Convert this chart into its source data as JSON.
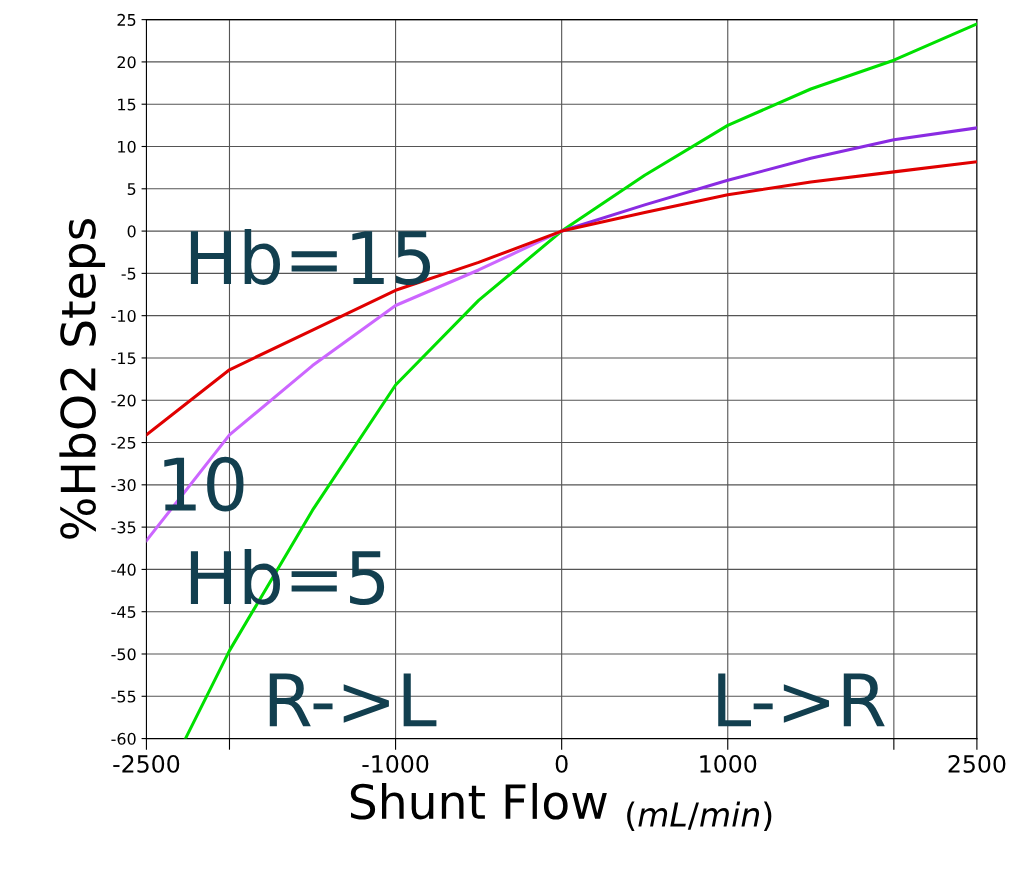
{
  "chart_data": {
    "type": "line",
    "xlabel": "Shunt Flow $_{(mL/min)}$",
    "ylabel": "%HbO2 Steps",
    "xlim": [
      -2500,
      2500
    ],
    "ylim": [
      -60,
      25
    ],
    "xticks": [
      -2500,
      {
        "value": -2000,
        "label": null
      },
      -1000,
      0,
      1000,
      {
        "value": 2000,
        "label": null
      },
      2500
    ],
    "yticks": [
      -60,
      -55,
      -50,
      -45,
      -40,
      -35,
      -30,
      -25,
      -20,
      -15,
      -10,
      -5,
      0,
      5,
      10,
      15,
      20,
      25
    ],
    "grid": true,
    "marker": "none",
    "line_style": "solid",
    "series": [
      {
        "color": "#00e000",
        "x": [
          -2265,
          -2000,
          -1500,
          -1000,
          -500,
          0,
          500,
          1000,
          1500,
          2000,
          2500
        ],
        "values": [
          -60,
          -49.6,
          -33,
          -18.2,
          -8.2,
          0,
          6.6,
          12.5,
          16.8,
          20.2,
          24.5
        ]
      },
      {
        "color": "#cc66ff",
        "x": [
          -2500,
          -2000,
          -1500,
          -1000,
          -500,
          0
        ],
        "values": [
          -36.6,
          -24.1,
          -15.9,
          -8.8,
          -4.6,
          0
        ]
      },
      {
        "color": "#8a2be2",
        "x": [
          0,
          500,
          1000,
          1500,
          2000,
          2500
        ],
        "values": [
          0,
          3.1,
          6.0,
          8.6,
          10.8,
          12.2
        ]
      },
      {
        "color": "#e00000",
        "x": [
          -2500,
          -2000,
          -1500,
          -1000,
          -500,
          0,
          500,
          1000,
          1500,
          2000,
          2500
        ],
        "values": [
          -24.1,
          -16.4,
          -11.7,
          -7.0,
          -3.7,
          0,
          2.2,
          4.3,
          5.8,
          7.0,
          8.2
        ]
      }
    ],
    "annotations": [
      "Hb=15",
      "10",
      "Hb=5",
      "R->L",
      "L->R"
    ]
  }
}
